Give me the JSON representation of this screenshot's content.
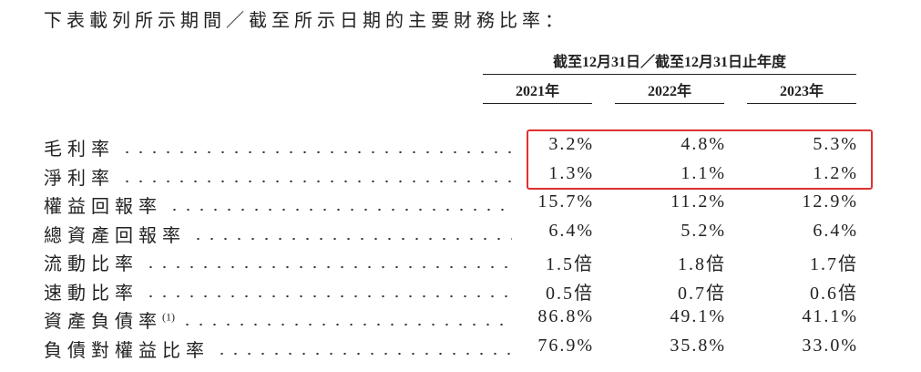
{
  "intro": "下表載列所示期間／截至所示日期的主要財務比率：",
  "table": {
    "header_group": "截至12月31日／截至12月31日止年度",
    "columns": [
      "2021年",
      "2022年",
      "2023年"
    ],
    "rows": [
      {
        "label": "毛利率",
        "values": [
          "3.2%",
          "4.8%",
          "5.3%"
        ]
      },
      {
        "label": "淨利率",
        "values": [
          "1.3%",
          "1.1%",
          "1.2%"
        ]
      },
      {
        "label": "權益回報率",
        "values": [
          "15.7%",
          "11.2%",
          "12.9%"
        ]
      },
      {
        "label": "總資產回報率",
        "values": [
          "6.4%",
          "5.2%",
          "6.4%"
        ]
      },
      {
        "label": "流動比率",
        "values": [
          "1.5倍",
          "1.8倍",
          "1.7倍"
        ]
      },
      {
        "label": "速動比率",
        "values": [
          "0.5倍",
          "0.7倍",
          "0.6倍"
        ]
      },
      {
        "label": "資產負債率",
        "note": "(1)",
        "values": [
          "86.8%",
          "49.1%",
          "41.1%"
        ]
      },
      {
        "label": "負債對權益比率",
        "values": [
          "76.9%",
          "35.8%",
          "33.0%"
        ]
      }
    ]
  }
}
